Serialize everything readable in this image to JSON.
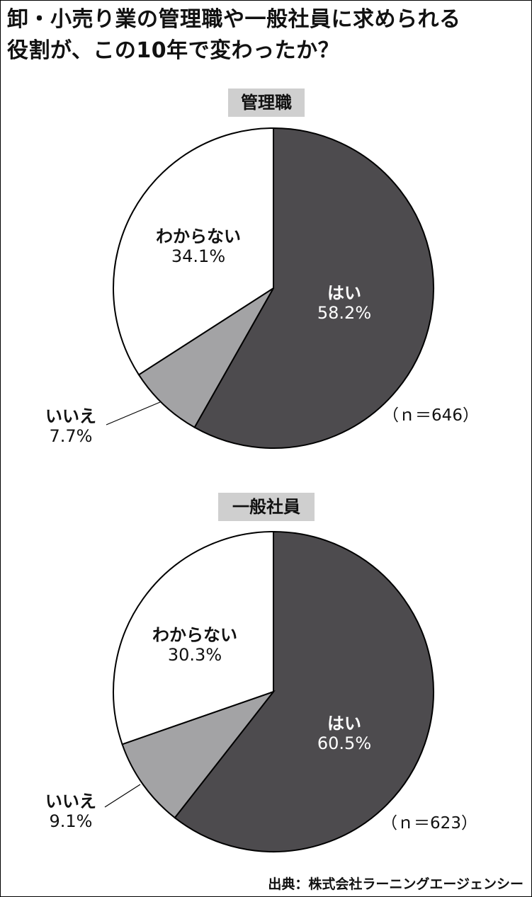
{
  "header": {
    "title_line1": "卸・小売り業の管理職や一般社員に求められる",
    "title_line2": "役割が、この10年で変わったか？"
  },
  "source": "出典：株式会社ラーニングエージェンシー",
  "colors": {
    "yes": "#4d4b4e",
    "no": "#a3a3a5",
    "unknown": "#ffffff",
    "label_bg": "#cfcfcf"
  },
  "chart_data": [
    {
      "type": "pie",
      "title": "管理職",
      "n_label": "（ｎ＝646）",
      "slices": [
        {
          "label": "はい",
          "value": 58.2,
          "value_label": "58.2%"
        },
        {
          "label": "いいえ",
          "value": 7.7,
          "value_label": "7.7%"
        },
        {
          "label": "わからない",
          "value": 34.1,
          "value_label": "34.1%"
        }
      ]
    },
    {
      "type": "pie",
      "title": "一般社員",
      "n_label": "（ｎ＝623）",
      "slices": [
        {
          "label": "はい",
          "value": 60.5,
          "value_label": "60.5%"
        },
        {
          "label": "いいえ",
          "value": 9.1,
          "value_label": "9.1%"
        },
        {
          "label": "わからない",
          "value": 30.3,
          "value_label": "30.3%"
        }
      ]
    }
  ]
}
